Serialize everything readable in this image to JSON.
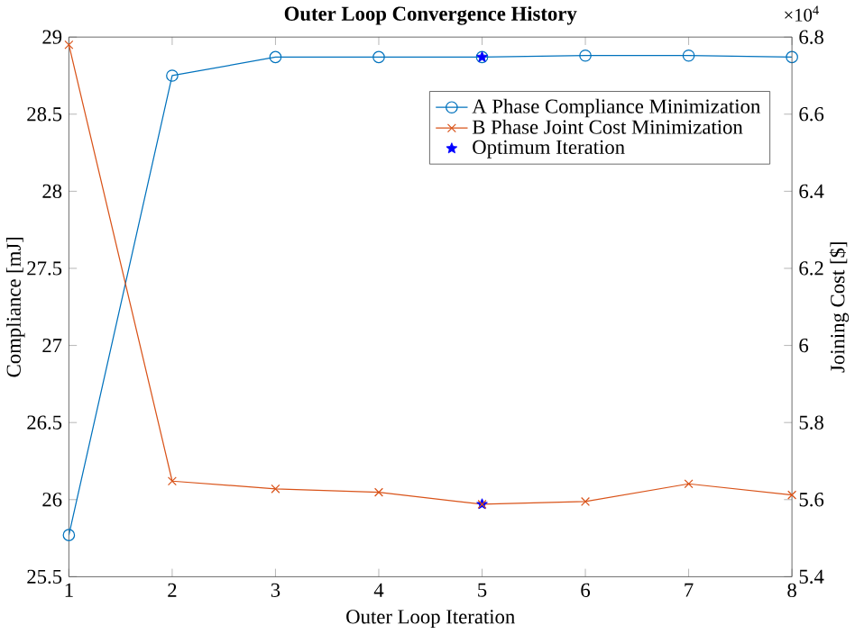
{
  "chart_data": {
    "type": "line",
    "title": "Outer Loop Convergence History",
    "xlabel": "Outer Loop Iteration",
    "ylabel": "Compliance [mJ]",
    "y2label": "Joining Cost [$]",
    "x": [
      1,
      2,
      3,
      4,
      5,
      6,
      7,
      8
    ],
    "series": [
      {
        "name": "A Phase Compliance Minimization",
        "color": "#0072bd",
        "marker": "circle",
        "values": [
          25.77,
          28.75,
          28.87,
          28.87,
          28.87,
          28.88,
          28.88,
          28.87
        ]
      },
      {
        "name": "B Phase Joint Cost Minimization",
        "color": "#d95319",
        "marker": "cross",
        "axis": "y2",
        "values": [
          6.78,
          5.648,
          5.628,
          5.619,
          5.588,
          5.595,
          5.641,
          5.612
        ]
      },
      {
        "name": "Optimum Iteration",
        "type": "scatter",
        "color": "#0000ff",
        "marker": "star",
        "x": [
          5
        ],
        "values": [
          28.87
        ]
      },
      {
        "type": "scatter",
        "color": "#0000ff",
        "marker": "star",
        "axis": "y2",
        "x": [
          5
        ],
        "values": [
          5.588
        ]
      }
    ],
    "xlim": [
      1,
      8
    ],
    "xticks": [
      1,
      2,
      3,
      4,
      5,
      6,
      7,
      8
    ],
    "ylim": [
      25.5,
      29
    ],
    "yticks": [
      25.5,
      26,
      26.5,
      27,
      27.5,
      28,
      28.5,
      29
    ],
    "y2lim": [
      5.4,
      6.8
    ],
    "y2ticks": [
      5.4,
      5.6,
      5.8,
      6,
      6.2,
      6.4,
      6.6,
      6.8
    ],
    "annotations": [
      "×10$^{4}$"
    ],
    "legend": "top right",
    "grid": false
  }
}
